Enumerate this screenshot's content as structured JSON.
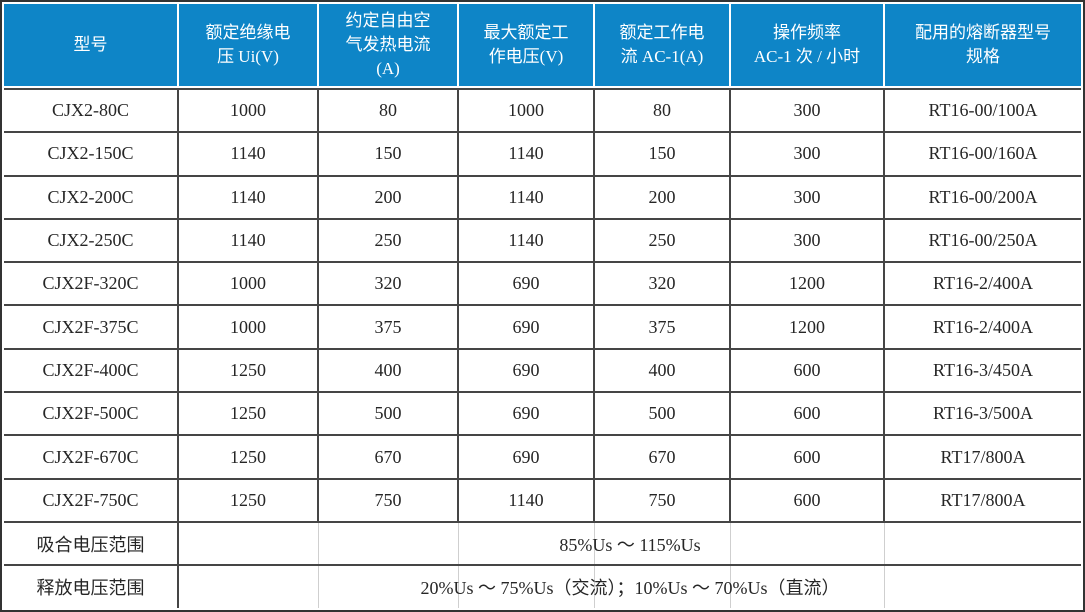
{
  "table": {
    "columns": [
      "型号",
      "额定绝缘电\n压 Ui(V)",
      "约定自由空\n气发热电流\n(A)",
      "最大额定工\n作电压(V)",
      "额定工作电\n流 AC-1(A)",
      "操作频率\nAC-1 次 / 小时",
      "配用的熔断器型号\n规格"
    ],
    "rows": [
      [
        "CJX2-80C",
        "1000",
        "80",
        "1000",
        "80",
        "300",
        "RT16-00/100A"
      ],
      [
        "CJX2-150C",
        "1140",
        "150",
        "1140",
        "150",
        "300",
        "RT16-00/160A"
      ],
      [
        "CJX2-200C",
        "1140",
        "200",
        "1140",
        "200",
        "300",
        "RT16-00/200A"
      ],
      [
        "CJX2-250C",
        "1140",
        "250",
        "1140",
        "250",
        "300",
        "RT16-00/250A"
      ],
      [
        "CJX2F-320C",
        "1000",
        "320",
        "690",
        "320",
        "1200",
        "RT16-2/400A"
      ],
      [
        "CJX2F-375C",
        "1000",
        "375",
        "690",
        "375",
        "1200",
        "RT16-2/400A"
      ],
      [
        "CJX2F-400C",
        "1250",
        "400",
        "690",
        "400",
        "600",
        "RT16-3/450A"
      ],
      [
        "CJX2F-500C",
        "1250",
        "500",
        "690",
        "500",
        "600",
        "RT16-3/500A"
      ],
      [
        "CJX2F-670C",
        "1250",
        "670",
        "690",
        "670",
        "600",
        "RT17/800A"
      ],
      [
        "CJX2F-750C",
        "1250",
        "750",
        "1140",
        "750",
        "600",
        "RT17/800A"
      ]
    ],
    "summary": [
      {
        "label": "吸合电压范围",
        "value": "85%Us ～ 115%Us"
      },
      {
        "label": "释放电压范围",
        "value": "20%Us ～ 75%Us（交流）；10%Us ～ 70%Us（直流）"
      }
    ]
  },
  "colors": {
    "header_bg": "#0E85C7",
    "header_text": "#FFFFFF",
    "grid_line": "#454545",
    "body_text": "#262626",
    "outer_border": "#333333",
    "ghost_line": "#CFCFCF"
  }
}
